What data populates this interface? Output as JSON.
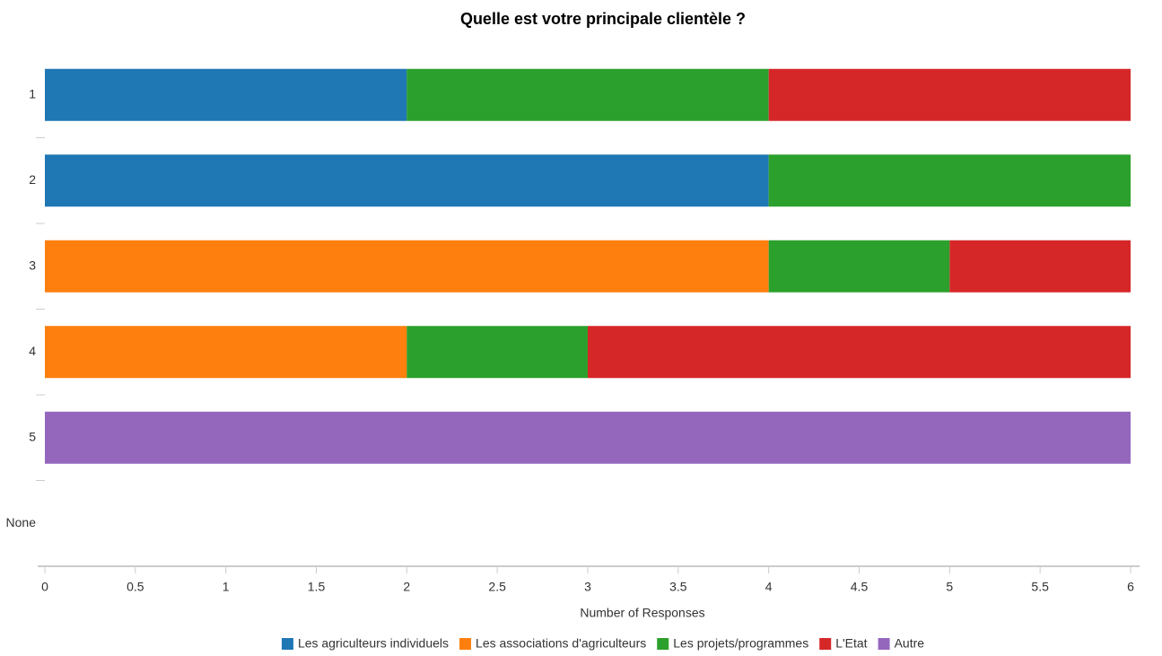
{
  "chart_data": {
    "type": "stacked-bar-horizontal",
    "title": "Quelle est votre principale clientèle ?",
    "categories": [
      "1",
      "2",
      "3",
      "4",
      "5",
      "None"
    ],
    "series": [
      {
        "name": "Les agriculteurs individuels",
        "color": "#1f77b4",
        "values": [
          2,
          4,
          0,
          0,
          0,
          0
        ]
      },
      {
        "name": "Les associations d'agriculteurs",
        "color": "#ff7f0e",
        "values": [
          0,
          0,
          4,
          2,
          0,
          0
        ]
      },
      {
        "name": "Les projets/programmes",
        "color": "#2ca02c",
        "values": [
          2,
          2,
          1,
          1,
          0,
          0
        ]
      },
      {
        "name": "L'Etat",
        "color": "#d62728",
        "values": [
          2,
          0,
          1,
          3,
          0,
          0
        ]
      },
      {
        "name": "Autre",
        "color": "#9467bd",
        "values": [
          0,
          0,
          0,
          0,
          6,
          0
        ]
      }
    ],
    "xlabel": "Number of Responses",
    "xlim": [
      0,
      6
    ],
    "xticks": [
      0,
      0.5,
      1,
      1.5,
      2,
      2.5,
      3,
      3.5,
      4,
      4.5,
      5,
      5.5,
      6
    ],
    "legend": "bottom"
  }
}
